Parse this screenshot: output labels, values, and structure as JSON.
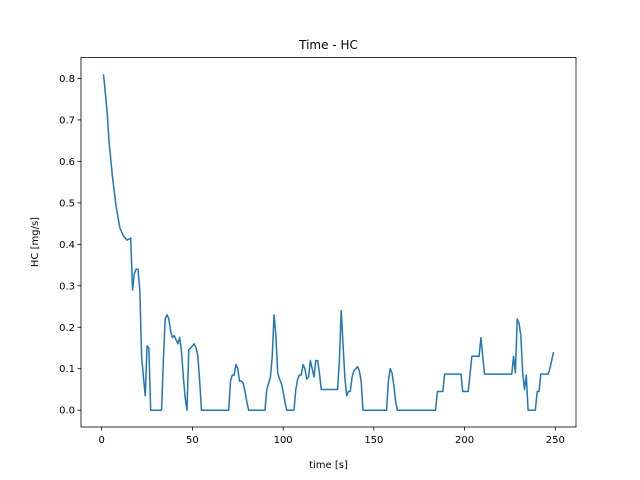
{
  "chart_data": {
    "type": "line",
    "title": "Time - HC",
    "x_label": "time [s]",
    "y_label": "HC [mg/s]",
    "x": [
      1,
      3,
      4,
      6,
      8,
      10,
      12,
      14,
      16,
      17,
      18,
      19,
      20,
      21,
      22,
      23,
      24,
      25,
      26,
      27,
      33,
      34,
      35,
      36,
      37,
      38,
      39,
      40,
      41,
      42,
      43,
      44,
      45,
      46,
      47,
      48,
      49,
      50,
      51,
      52,
      53,
      54,
      55,
      70,
      71,
      72,
      73,
      74,
      75,
      76,
      77,
      78,
      79,
      80,
      81,
      90,
      91,
      92,
      93,
      94,
      95,
      96,
      97,
      98,
      99,
      100,
      101,
      102,
      106,
      107,
      108,
      109,
      110,
      111,
      112,
      113,
      114,
      115,
      116,
      117,
      118,
      119,
      120,
      121,
      130,
      131,
      132,
      133,
      134,
      135,
      136,
      137,
      138,
      139,
      140,
      141,
      142,
      143,
      144,
      157,
      158,
      159,
      160,
      161,
      162,
      163,
      184,
      185,
      188,
      189,
      198,
      199,
      202,
      203,
      204,
      208,
      209,
      210,
      211,
      226,
      227,
      228,
      229,
      230,
      231,
      232,
      233,
      234,
      235,
      239,
      240,
      241,
      242,
      246,
      247,
      249
    ],
    "series": [
      {
        "name": "HC",
        "color": "#1f77b4",
        "values": [
          0.81,
          0.72,
          0.65,
          0.56,
          0.49,
          0.44,
          0.42,
          0.41,
          0.415,
          0.29,
          0.33,
          0.34,
          0.34,
          0.29,
          0.13,
          0.08,
          0.035,
          0.155,
          0.15,
          0.0,
          0.0,
          0.12,
          0.22,
          0.23,
          0.22,
          0.19,
          0.175,
          0.18,
          0.17,
          0.16,
          0.175,
          0.14,
          0.08,
          0.03,
          0.0,
          0.145,
          0.15,
          0.155,
          0.16,
          0.15,
          0.13,
          0.07,
          0.0,
          0.0,
          0.07,
          0.085,
          0.085,
          0.11,
          0.1,
          0.07,
          0.07,
          0.065,
          0.045,
          0.02,
          0.0,
          0.0,
          0.05,
          0.065,
          0.08,
          0.13,
          0.23,
          0.18,
          0.09,
          0.075,
          0.065,
          0.045,
          0.02,
          0.0,
          0.0,
          0.05,
          0.075,
          0.085,
          0.085,
          0.11,
          0.1,
          0.075,
          0.08,
          0.12,
          0.1,
          0.08,
          0.12,
          0.12,
          0.09,
          0.05,
          0.05,
          0.12,
          0.24,
          0.16,
          0.08,
          0.035,
          0.045,
          0.045,
          0.08,
          0.095,
          0.1,
          0.105,
          0.095,
          0.07,
          0.0,
          0.0,
          0.07,
          0.1,
          0.09,
          0.06,
          0.02,
          0.0,
          0.0,
          0.045,
          0.045,
          0.087,
          0.087,
          0.045,
          0.045,
          0.087,
          0.13,
          0.13,
          0.175,
          0.13,
          0.087,
          0.087,
          0.13,
          0.09,
          0.22,
          0.21,
          0.18,
          0.09,
          0.05,
          0.085,
          0.0,
          0.0,
          0.045,
          0.045,
          0.087,
          0.087,
          0.1,
          0.14
        ]
      }
    ],
    "xlim": [
      -11.4,
      261.4
    ],
    "ylim": [
      -0.0405,
      0.8505
    ],
    "xticks": [
      0,
      50,
      100,
      150,
      200,
      250
    ],
    "yticks": [
      {
        "value": 0,
        "label": "0.0"
      },
      0.1,
      0.2,
      0.3,
      0.4,
      0.5,
      0.6,
      0.7,
      0.8
    ]
  }
}
